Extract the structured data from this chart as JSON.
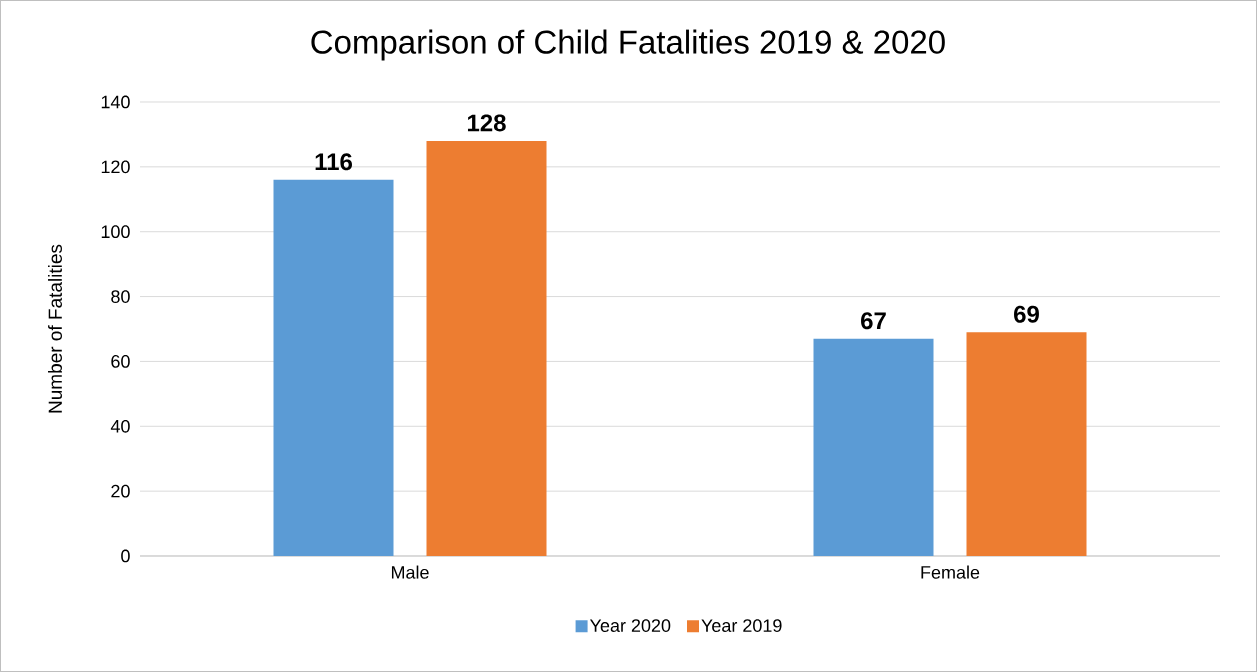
{
  "chart_data": {
    "type": "bar",
    "title": "Comparison of Child Fatalities 2019 & 2020",
    "ylabel": "Number of Fatalities",
    "categories": [
      "Male",
      "Female"
    ],
    "series": [
      {
        "name": "Year 2020",
        "color": "#5b9bd5",
        "values": [
          116,
          67
        ]
      },
      {
        "name": "Year 2019",
        "color": "#ed7d31",
        "values": [
          128,
          69
        ]
      }
    ],
    "ylim": [
      0,
      140
    ],
    "yticks": [
      0,
      20,
      40,
      60,
      80,
      100,
      120,
      140
    ],
    "grid": "y",
    "legend": "bottom",
    "data_labels": true
  }
}
